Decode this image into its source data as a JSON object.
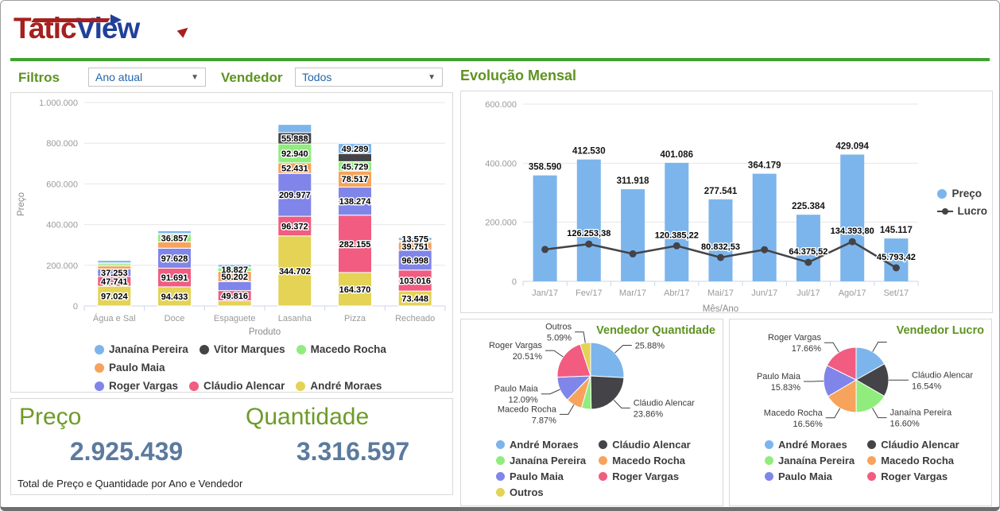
{
  "brand": {
    "part1": "Tatic",
    "part2": "View"
  },
  "colors": {
    "divider_green": "#3fa32e",
    "title_green": "#5e9320",
    "kpi_title_green": "#6d9b28",
    "kpi_value_blue": "#5b7a9e",
    "logo_red": "#a5201f",
    "logo_blue": "#21409a",
    "dropdown_text_blue": "#2166ad",
    "palette": [
      "#7cb5ec",
      "#434348",
      "#90ed7d",
      "#f7a35c",
      "#8085e9",
      "#f15c80",
      "#e4d354"
    ]
  },
  "filters": {
    "label": "Filtros",
    "period_value": "Ano atual",
    "vendor_label": "Vendedor",
    "vendor_value": "Todos"
  },
  "kpi": {
    "price_label": "Preço",
    "price_value": "2.925.439",
    "qty_label": "Quantidade",
    "qty_value": "3.316.597",
    "footer": "Total de Preço e Quantidade por Ano e Vendedor"
  },
  "chart_data": [
    {
      "id": "produto-preco",
      "type": "bar",
      "stacked": true,
      "title": "",
      "xlabel": "Produto",
      "ylabel": "Preço",
      "ylim": [
        0,
        1000000
      ],
      "yticks": [
        "0",
        "200.000",
        "400.000",
        "600.000",
        "800.000",
        "1.000.000"
      ],
      "categories": [
        "Água e Sal",
        "Doce",
        "Espaguete",
        "Lasanha",
        "Pizza",
        "Recheado"
      ],
      "series": [
        {
          "name": "André Moraes",
          "color": "#e4d354",
          "values": [
            97024,
            94433,
            26000,
            344702,
            164370,
            73448
          ],
          "labels": [
            "97.024",
            "94.433",
            null,
            "344.702",
            "164.370",
            "73.448"
          ]
        },
        {
          "name": "Cláudio Alencar",
          "color": "#f15c80",
          "values": [
            47741,
            91691,
            49816,
            96372,
            282155,
            103016
          ],
          "labels": [
            "47.741",
            "91.691",
            "49.816",
            "96.372",
            "282.155",
            "103.016"
          ]
        },
        {
          "name": "Roger Vargas",
          "color": "#8085e9",
          "values": [
            37253,
            97628,
            44000,
            209977,
            138274,
            96998
          ],
          "labels": [
            "37.253",
            "97.628",
            null,
            "209.977",
            "138.274",
            "96.998"
          ]
        },
        {
          "name": "Paulo Maia",
          "color": "#f7a35c",
          "values": [
            15000,
            31000,
            50202,
            52431,
            78517,
            39751
          ],
          "labels": [
            null,
            null,
            "50.202",
            "52.431",
            "78.517",
            "39.751"
          ]
        },
        {
          "name": "Macedo Rocha",
          "color": "#90ed7d",
          "values": [
            10000,
            36857,
            18827,
            92940,
            45729,
            8000
          ],
          "labels": [
            null,
            "36.857",
            "18.827",
            "92.940",
            "45.729",
            null
          ]
        },
        {
          "name": "Vitor Marques",
          "color": "#434348",
          "values": [
            5000,
            5000,
            3000,
            55888,
            40000,
            2000
          ],
          "labels": [
            null,
            null,
            null,
            "55.888",
            null,
            null
          ]
        },
        {
          "name": "Janaína Pereira",
          "color": "#7cb5ec",
          "values": [
            12000,
            13000,
            12000,
            40000,
            49289,
            13575
          ],
          "labels": [
            null,
            null,
            null,
            null,
            "49.289",
            "13.575"
          ]
        }
      ],
      "legend_order": [
        "Janaína Pereira",
        "Vitor Marques",
        "Macedo Rocha",
        "Paulo Maia",
        "Roger Vargas",
        "Cláudio Alencar",
        "André Moraes"
      ]
    },
    {
      "id": "evolucao-mensal",
      "type": "bar+line",
      "title": "Evolução Mensal",
      "xlabel": "Mês/Ano",
      "ylim": [
        0,
        600000
      ],
      "yticks": [
        "0",
        "200.000",
        "400.000",
        "600.000"
      ],
      "categories": [
        "Jan/17",
        "Fev/17",
        "Mar/17",
        "Abr/17",
        "Mai/17",
        "Jun/17",
        "Jul/17",
        "Ago/17",
        "Set/17"
      ],
      "series": [
        {
          "name": "Preço",
          "type": "bar",
          "color": "#7cb5ec",
          "values": [
            358590,
            412530,
            311918,
            401086,
            277541,
            364179,
            225384,
            429094,
            145117
          ],
          "labels": [
            "358.590",
            "412.530",
            "311.918",
            "401.086",
            "277.541",
            "364.179",
            "225.384",
            "429.094",
            "145.117"
          ]
        },
        {
          "name": "Lucro",
          "type": "line",
          "color": "#434348",
          "values": [
            108000,
            126253.38,
            93000,
            120385.22,
            80832.53,
            107000,
            64375.52,
            134393.8,
            45793.42
          ],
          "labels": [
            null,
            "126.253,38",
            null,
            "120.385,22",
            "80.832,53",
            null,
            "64.375,52",
            "134.393,80",
            "45.793,42"
          ]
        }
      ]
    },
    {
      "id": "vendedor-quantidade",
      "type": "pie",
      "title": "Vendedor Quantidade",
      "slices": [
        {
          "name": "André Moraes",
          "color": "#7cb5ec",
          "pct": 25.88,
          "label_name": null,
          "label_pct": "25.88%"
        },
        {
          "name": "Cláudio Alencar",
          "color": "#434348",
          "pct": 23.86,
          "label_name": "Cláudio Alencar",
          "label_pct": "23.86%"
        },
        {
          "name": "Janaína Pereira",
          "color": "#90ed7d",
          "pct": null,
          "label_name": null,
          "label_pct": null
        },
        {
          "name": "Macedo Rocha",
          "color": "#f7a35c",
          "pct": 7.87,
          "label_name": "Macedo Rocha",
          "label_pct": "7.87%"
        },
        {
          "name": "Paulo Maia",
          "color": "#8085e9",
          "pct": 12.09,
          "label_name": "Paulo Maia",
          "label_pct": "12.09%"
        },
        {
          "name": "Roger Vargas",
          "color": "#f15c80",
          "pct": 20.51,
          "label_name": "Roger Vargas",
          "label_pct": "20.51%"
        },
        {
          "name": "Outros",
          "color": "#e4d354",
          "pct": 5.09,
          "label_name": "Outros",
          "label_pct": "5.09%"
        }
      ],
      "legend_order": [
        "André Moraes",
        "Cláudio Alencar",
        "Janaína Pereira",
        "Macedo Rocha",
        "Paulo Maia",
        "Roger Vargas",
        "Outros"
      ]
    },
    {
      "id": "vendedor-lucro",
      "type": "pie",
      "title": "Vendedor Lucro",
      "slices": [
        {
          "name": "André Moraes",
          "color": "#7cb5ec",
          "pct": null,
          "label_name": null,
          "label_pct": null,
          "leader": true
        },
        {
          "name": "Cláudio Alencar",
          "color": "#434348",
          "pct": 16.54,
          "label_name": "Cláudio Alencar",
          "label_pct": "16.54%"
        },
        {
          "name": "Janaína Pereira",
          "color": "#90ed7d",
          "pct": 16.6,
          "label_name": "Janaína Pereira",
          "label_pct": "16.60%"
        },
        {
          "name": "Macedo Rocha",
          "color": "#f7a35c",
          "pct": 16.56,
          "label_name": "Macedo Rocha",
          "label_pct": "16.56%"
        },
        {
          "name": "Paulo Maia",
          "color": "#8085e9",
          "pct": 15.83,
          "label_name": "Paulo Maia",
          "label_pct": "15.83%"
        },
        {
          "name": "Roger Vargas",
          "color": "#f15c80",
          "pct": 17.66,
          "label_name": "Roger Vargas",
          "label_pct": "17.66%"
        }
      ],
      "legend_order": [
        "André Moraes",
        "Cláudio Alencar",
        "Janaína Pereira",
        "Macedo Rocha",
        "Paulo Maia",
        "Roger Vargas"
      ]
    }
  ]
}
